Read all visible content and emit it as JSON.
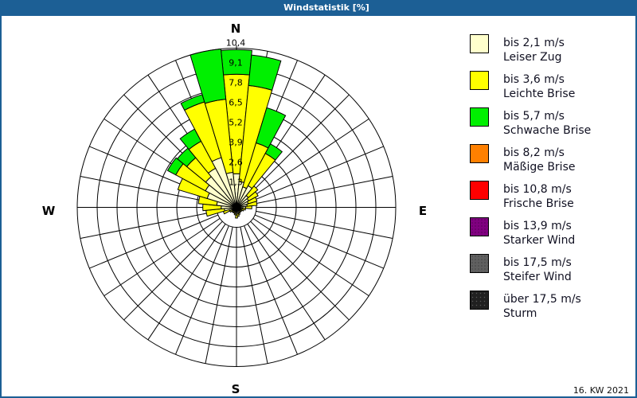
{
  "window": {
    "title": "Windstatistik [%]"
  },
  "compass": {
    "n": "N",
    "e": "E",
    "s": "S",
    "w": "W"
  },
  "footer": {
    "period": "16. KW 2021"
  },
  "legend": [
    {
      "range": "bis 2,1 m/s",
      "name": "Leiser Zug",
      "color": "#ffffcc"
    },
    {
      "range": "bis 3,6 m/s",
      "name": "Leichte Brise",
      "color": "#ffff00"
    },
    {
      "range": "bis 5,7 m/s",
      "name": "Schwache Brise",
      "color": "#00f000"
    },
    {
      "range": "bis 8,2 m/s",
      "name": "Mäßige Brise",
      "color": "#ff8000"
    },
    {
      "range": "bis 10,8 m/s",
      "name": "Frische Brise",
      "color": "#ff0000"
    },
    {
      "range": "bis 13,9 m/s",
      "name": "Starker Wind",
      "color": "#800080"
    },
    {
      "range": "bis 17,5 m/s",
      "name": "Steifer Wind",
      "color": "#606060"
    },
    {
      "range": "über 17,5 m/s",
      "name": "Sturm",
      "color": "#202020"
    }
  ],
  "chart_data": {
    "type": "bar",
    "subtype": "polar stacked bar (wind rose)",
    "title": "Windstatistik [%]",
    "unit": "%",
    "direction_labels": {
      "0": "N",
      "90": "E",
      "180": "S",
      "270": "W"
    },
    "directions_deg": [
      0,
      11.25,
      22.5,
      33.75,
      45,
      56.25,
      67.5,
      78.75,
      90,
      101.25,
      112.5,
      123.75,
      135,
      146.25,
      157.5,
      168.75,
      180,
      191.25,
      202.5,
      213.75,
      225,
      236.25,
      247.5,
      258.75,
      270,
      281.25,
      292.5,
      303.75,
      315,
      326.25,
      337.5,
      348.75
    ],
    "categories": [
      "0°",
      "11.25°",
      "22.5°",
      "33.75°",
      "45°",
      "56.25°",
      "67.5°",
      "78.75°",
      "90°",
      "101.25°",
      "112.5°",
      "123.75°",
      "135°",
      "146.25°",
      "157.5°",
      "168.75°",
      "180°",
      "191.25°",
      "202.5°",
      "213.75°",
      "225°",
      "236.25°",
      "247.5°",
      "258.75°",
      "270°",
      "281.25°",
      "292.5°",
      "303.75°",
      "315°",
      "326.25°",
      "337.5°",
      "348.75°"
    ],
    "series": [
      {
        "name": "bis 2,1 m/s (Leiser Zug)",
        "color": "#ffffcc",
        "values": [
          2.2,
          1.7,
          1.4,
          1.6,
          1.0,
          0.9,
          0.8,
          0.7,
          0.6,
          0.4,
          0.3,
          0.3,
          0.3,
          0.3,
          0.4,
          0.4,
          0.5,
          0.4,
          0.3,
          0.3,
          0.3,
          0.3,
          0.5,
          0.8,
          1.0,
          1.3,
          2.0,
          2.3,
          2.6,
          2.9,
          3.4,
          2.3
        ]
      },
      {
        "name": "bis 3,6 m/s (Leichte Brise)",
        "color": "#ffff00",
        "values": [
          6.5,
          6.3,
          3.0,
          2.4,
          0.8,
          0.7,
          0.6,
          0.65,
          0.4,
          0.2,
          0.2,
          0.1,
          0.1,
          0.1,
          0.1,
          0.2,
          0.2,
          0.1,
          0.1,
          0.1,
          0.1,
          0.2,
          0.4,
          1.2,
          1.2,
          1.2,
          2.0,
          2.2,
          1.6,
          2.0,
          3.8,
          4.8
        ]
      },
      {
        "name": "bis 5,7 m/s (Schwache Brise)",
        "color": "#00f000",
        "values": [
          1.6,
          2.0,
          2.4,
          0.7,
          0,
          0,
          0,
          0,
          0,
          0,
          0,
          0,
          0,
          0,
          0,
          0,
          0,
          0,
          0,
          0,
          0,
          0,
          0,
          0,
          0,
          0,
          0,
          0.6,
          0.8,
          0.9,
          0.5,
          3.3
        ]
      },
      {
        "name": "bis 8,2 m/s (Mäßige Brise)",
        "color": "#ff8000",
        "values": [
          0,
          0,
          0,
          0,
          0,
          0,
          0,
          0,
          0,
          0,
          0,
          0,
          0,
          0,
          0,
          0,
          0,
          0,
          0,
          0,
          0,
          0,
          0,
          0,
          0,
          0,
          0,
          0,
          0,
          0,
          0,
          0
        ]
      },
      {
        "name": "bis 10,8 m/s (Frische Brise)",
        "color": "#ff0000",
        "values": [
          0,
          0,
          0,
          0,
          0,
          0,
          0,
          0,
          0,
          0,
          0,
          0,
          0,
          0,
          0,
          0,
          0,
          0,
          0,
          0,
          0,
          0,
          0,
          0,
          0,
          0,
          0,
          0,
          0,
          0,
          0,
          0
        ]
      },
      {
        "name": "bis 13,9 m/s (Starker Wind)",
        "color": "#800080",
        "values": [
          0,
          0,
          0,
          0,
          0,
          0,
          0,
          0,
          0,
          0,
          0,
          0,
          0,
          0,
          0,
          0,
          0,
          0,
          0,
          0,
          0,
          0,
          0,
          0,
          0,
          0,
          0,
          0,
          0,
          0,
          0,
          0
        ]
      },
      {
        "name": "bis 17,5 m/s (Steifer Wind)",
        "color": "#606060",
        "values": [
          0,
          0,
          0,
          0,
          0,
          0,
          0,
          0,
          0,
          0,
          0,
          0,
          0,
          0,
          0,
          0,
          0,
          0,
          0,
          0,
          0,
          0,
          0,
          0,
          0,
          0,
          0,
          0,
          0,
          0,
          0,
          0
        ]
      },
      {
        "name": "über 17,5 m/s (Sturm)",
        "color": "#202020",
        "values": [
          0,
          0,
          0,
          0,
          0,
          0,
          0,
          0,
          0,
          0,
          0,
          0,
          0,
          0,
          0,
          0,
          0,
          0,
          0,
          0,
          0,
          0,
          0,
          0,
          0,
          0,
          0,
          0,
          0,
          0,
          0,
          0
        ]
      }
    ],
    "radial_axis": {
      "min": 0,
      "max": 10.4,
      "ticks": [
        1.3,
        2.6,
        3.9,
        5.2,
        6.5,
        7.8,
        9.1,
        10.4
      ],
      "tick_labels": [
        "1,3",
        "2,6",
        "3,9",
        "5,2",
        "6,5",
        "7,8",
        "9,1",
        "10,4"
      ]
    },
    "grid": true,
    "legend_position": "right",
    "annotation": "16. KW 2021"
  }
}
